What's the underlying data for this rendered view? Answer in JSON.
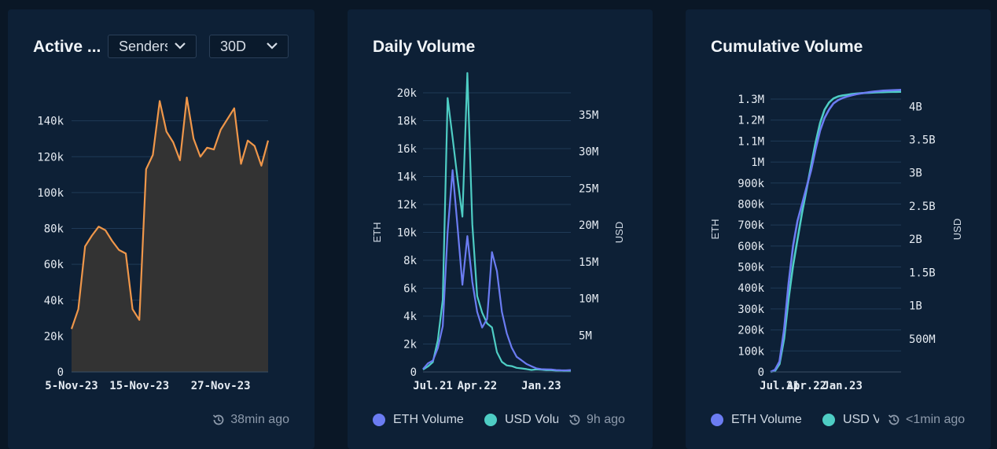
{
  "colors": {
    "orange": "#f0974a",
    "area": "#333333",
    "eth": "#6b7cf2",
    "usd": "#4ecdc4",
    "grid": "#1f3a57"
  },
  "cards": [
    {
      "title": "Active Senders",
      "title_display": "Active ...",
      "selectors": [
        {
          "value": "Senders",
          "icon": "chevron-down-icon"
        },
        {
          "value": "30D",
          "icon": "chevron-down-icon"
        }
      ],
      "updated": {
        "icon": "refresh-clock-icon",
        "text": "38min ago"
      }
    },
    {
      "title": "Daily Volume",
      "legend": [
        {
          "label": "ETH Volume",
          "color": "#6b7cf2"
        },
        {
          "label": "USD Volume",
          "color": "#4ecdc4"
        }
      ],
      "updated": {
        "icon": "refresh-clock-icon",
        "text": "9h ago"
      }
    },
    {
      "title": "Cumulative Volume",
      "legend": [
        {
          "label": "ETH Volume",
          "color": "#6b7cf2"
        },
        {
          "label": "USD Volume",
          "color": "#4ecdc4"
        }
      ],
      "updated": {
        "icon": "refresh-clock-icon",
        "text": "<1min ago"
      }
    }
  ],
  "chart_data": [
    {
      "type": "area",
      "y_ticks": [
        "0",
        "20k",
        "40k",
        "60k",
        "80k",
        "100k",
        "120k",
        "140k"
      ],
      "x_ticks": [
        "5-Nov-23",
        "15-Nov-23",
        "27-Nov-23"
      ],
      "ylim": [
        0,
        160000
      ],
      "grid": true,
      "series": [
        {
          "values": [
            24000,
            35000,
            70000,
            76000,
            81000,
            79000,
            73000,
            68000,
            66000,
            35000,
            29000,
            113000,
            121000,
            151000,
            134000,
            128000,
            118000,
            153000,
            130000,
            120000,
            125000,
            124000,
            135000,
            141000,
            147000,
            116000,
            129000,
            126000,
            115000,
            129000
          ]
        }
      ]
    },
    {
      "type": "line",
      "x_ticks": [
        "Jul.21",
        "Apr.22",
        "Jan.23"
      ],
      "y_left_ticks": [
        "0",
        "2k",
        "4k",
        "6k",
        "8k",
        "10k",
        "12k",
        "14k",
        "16k",
        "18k",
        "20k"
      ],
      "y_right_ticks": [
        "5M",
        "10M",
        "15M",
        "20M",
        "25M",
        "30M",
        "35M"
      ],
      "ylabel_left": "ETH",
      "ylabel_right": "USD",
      "ylim_left": [
        0,
        20000
      ],
      "ylim_right": [
        0,
        38000000
      ],
      "grid": true,
      "series": [
        {
          "name": "ETH Volume",
          "axis": "left",
          "values": [
            200,
            500,
            800,
            1500,
            3000,
            9000,
            12500,
            10000,
            7500,
            11000,
            6500,
            4500,
            4000,
            3800,
            9000,
            6500,
            3500,
            2500,
            1500,
            1000,
            700,
            500,
            350,
            300,
            250,
            220,
            200,
            180,
            150,
            130,
            110
          ]
        },
        {
          "name": "USD Volume",
          "axis": "right",
          "values": [
            300000,
            800000,
            1500000,
            5000000,
            12000000,
            39000000,
            34000000,
            30000000,
            24000000,
            36000000,
            20000000,
            9000000,
            7000000,
            6000000,
            5000000,
            2500000,
            1600000,
            1100000,
            800000,
            600000,
            500000,
            400000,
            350000,
            300000,
            250000,
            220000,
            200000,
            180000,
            160000,
            140000,
            120000
          ]
        }
      ]
    },
    {
      "type": "line",
      "x_ticks": [
        "Jul.21",
        "Apr.22",
        "Jan.23"
      ],
      "y_left_ticks": [
        "0",
        "100k",
        "200k",
        "300k",
        "400k",
        "500k",
        "600k",
        "700k",
        "800k",
        "900k",
        "1M",
        "1.1M",
        "1.2M",
        "1.3M"
      ],
      "y_right_ticks": [
        "500M",
        "1B",
        "1.5B",
        "2B",
        "2.5B",
        "3B",
        "3.5B",
        "4B"
      ],
      "ylabel_left": "ETH",
      "ylabel_right": "USD",
      "ylim_left": [
        0,
        1360000
      ],
      "ylim_right": [
        0,
        4300000000
      ],
      "grid": true,
      "series": [
        {
          "name": "ETH Volume",
          "axis": "left",
          "values": [
            0,
            10000,
            50000,
            200000,
            420000,
            600000,
            720000,
            800000,
            880000,
            960000,
            1060000,
            1150000,
            1210000,
            1250000,
            1280000,
            1295000,
            1305000,
            1312000,
            1318000,
            1323000,
            1327000,
            1330000,
            1333000,
            1336000,
            1338000,
            1340000,
            1341000,
            1342000,
            1343000,
            1344000
          ]
        },
        {
          "name": "USD Volume",
          "axis": "right",
          "values": [
            0,
            15000000,
            120000000,
            500000000,
            1100000000,
            1600000000,
            2000000000,
            2400000000,
            2750000000,
            3100000000,
            3450000000,
            3750000000,
            3950000000,
            4060000000,
            4120000000,
            4150000000,
            4165000000,
            4175000000,
            4185000000,
            4192000000,
            4198000000,
            4203000000,
            4207000000,
            4210000000,
            4213000000,
            4215000000,
            4217000000,
            4219000000,
            4220000000,
            4221000000
          ]
        }
      ]
    }
  ]
}
